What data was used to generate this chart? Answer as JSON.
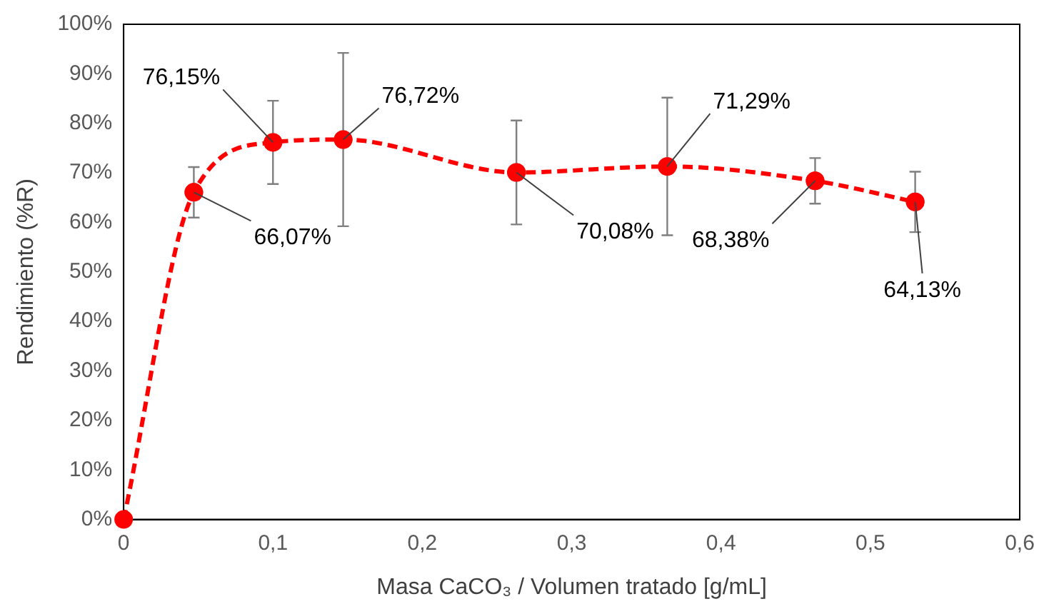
{
  "chart_data": {
    "type": "line",
    "xlabel": "Masa CaCO₃ / Volumen tratado [g/mL]",
    "ylabel": "Rendimiento (%R)",
    "x": [
      0,
      0.047,
      0.1,
      0.147,
      0.263,
      0.364,
      0.463,
      0.53
    ],
    "series": [
      {
        "color": "#ff0000",
        "values": [
          0,
          66.07,
          76.15,
          76.72,
          70.08,
          71.29,
          68.38,
          64.13
        ],
        "errors": [
          null,
          5.1,
          8.4,
          17.5,
          10.5,
          13.9,
          4.6,
          6.1
        ],
        "value_labels": [
          null,
          "66,07%",
          "76,15%",
          "76,72%",
          "70,08%",
          "71,29%",
          "68,38%",
          "64,13%"
        ]
      }
    ],
    "marker": "circle",
    "line_style": "dashed",
    "grid": false,
    "legend": false,
    "xlim": [
      0,
      0.6
    ],
    "xticks": [
      {
        "value": 0,
        "label": "0"
      },
      {
        "value": 0.1,
        "label": "0,1"
      },
      {
        "value": 0.2,
        "label": "0,2"
      },
      {
        "value": 0.3,
        "label": "0,3"
      },
      {
        "value": 0.4,
        "label": "0,4"
      },
      {
        "value": 0.5,
        "label": "0,5"
      },
      {
        "value": 0.6,
        "label": "0,6"
      }
    ],
    "ylim": [
      0,
      100
    ],
    "yticks": [
      {
        "value": 0,
        "label": "0%"
      },
      {
        "value": 10,
        "label": "10%"
      },
      {
        "value": 20,
        "label": "20%"
      },
      {
        "value": 30,
        "label": "30%"
      },
      {
        "value": 40,
        "label": "40%"
      },
      {
        "value": 50,
        "label": "50%"
      },
      {
        "value": 60,
        "label": "60%"
      },
      {
        "value": 70,
        "label": "70%"
      },
      {
        "value": 80,
        "label": "80%"
      },
      {
        "value": 90,
        "label": "90%"
      },
      {
        "value": 100,
        "label": "100%"
      }
    ]
  }
}
